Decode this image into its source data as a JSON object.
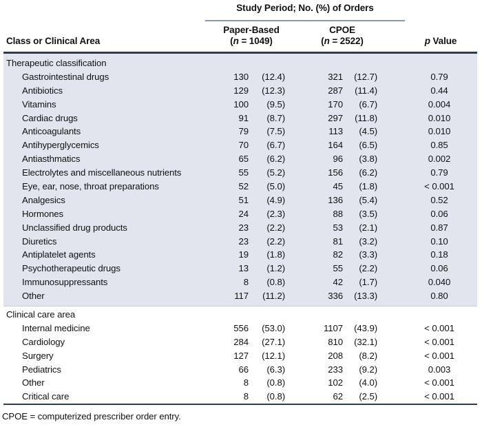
{
  "header": {
    "span_title": "Study Period; No. (%) of Orders",
    "row_header": "Class or Clinical Area",
    "paper": {
      "label": "Paper-Based",
      "n_open": "(",
      "n_italic": "n",
      "n_tail": " = 1049)"
    },
    "cpoe": {
      "label": "CPOE",
      "n_open": "(",
      "n_italic": "n",
      "n_tail": " = 2522)"
    },
    "p_col": {
      "p_italic": "p",
      "rest": " Value"
    }
  },
  "colors": {
    "shaded_band": "#e2e4ee",
    "thick_rule": "#2e3a4e",
    "span_rule": "#9097a4",
    "band_edge": "#c9cdda"
  },
  "table": {
    "sections": [
      {
        "title": "Therapeutic classification",
        "shaded": true,
        "rows": [
          {
            "label": "Gastrointestinal drugs",
            "paper_n": "130",
            "paper_pct": "(12.4)",
            "cpoe_n": "321",
            "cpoe_pct": "(12.7)",
            "p_value": "0.79"
          },
          {
            "label": "Antibiotics",
            "paper_n": "129",
            "paper_pct": "(12.3)",
            "cpoe_n": "287",
            "cpoe_pct": "(11.4)",
            "p_value": "0.44"
          },
          {
            "label": "Vitamins",
            "paper_n": "100",
            "paper_pct": "(9.5)",
            "cpoe_n": "170",
            "cpoe_pct": "(6.7)",
            "p_value": "0.004"
          },
          {
            "label": "Cardiac drugs",
            "paper_n": "91",
            "paper_pct": "(8.7)",
            "cpoe_n": "297",
            "cpoe_pct": "(11.8)",
            "p_value": "0.010"
          },
          {
            "label": "Anticoagulants",
            "paper_n": "79",
            "paper_pct": "(7.5)",
            "cpoe_n": "113",
            "cpoe_pct": "(4.5)",
            "p_value": "0.010"
          },
          {
            "label": "Antihyperglycemics",
            "paper_n": "70",
            "paper_pct": "(6.7)",
            "cpoe_n": "164",
            "cpoe_pct": "(6.5)",
            "p_value": "0.85"
          },
          {
            "label": "Antiasthmatics",
            "paper_n": "65",
            "paper_pct": "(6.2)",
            "cpoe_n": "96",
            "cpoe_pct": "(3.8)",
            "p_value": "0.002"
          },
          {
            "label": "Electrolytes and miscellaneous nutrients",
            "paper_n": "55",
            "paper_pct": "(5.2)",
            "cpoe_n": "156",
            "cpoe_pct": "(6.2)",
            "p_value": "0.79"
          },
          {
            "label": "Eye, ear, nose, throat preparations",
            "paper_n": "52",
            "paper_pct": "(5.0)",
            "cpoe_n": "45",
            "cpoe_pct": "(1.8)",
            "p_value": "< 0.001"
          },
          {
            "label": "Analgesics",
            "paper_n": "51",
            "paper_pct": "(4.9)",
            "cpoe_n": "136",
            "cpoe_pct": "(5.4)",
            "p_value": "0.52"
          },
          {
            "label": "Hormones",
            "paper_n": "24",
            "paper_pct": "(2.3)",
            "cpoe_n": "88",
            "cpoe_pct": "(3.5)",
            "p_value": "0.06"
          },
          {
            "label": "Unclassified drug products",
            "paper_n": "23",
            "paper_pct": "(2.2)",
            "cpoe_n": "53",
            "cpoe_pct": "(2.1)",
            "p_value": "0.87"
          },
          {
            "label": "Diuretics",
            "paper_n": "23",
            "paper_pct": "(2.2)",
            "cpoe_n": "81",
            "cpoe_pct": "(3.2)",
            "p_value": "0.10"
          },
          {
            "label": "Antiplatelet agents",
            "paper_n": "19",
            "paper_pct": "(1.8)",
            "cpoe_n": "82",
            "cpoe_pct": "(3.3)",
            "p_value": "0.18"
          },
          {
            "label": "Psychotherapeutic drugs",
            "paper_n": "13",
            "paper_pct": "(1.2)",
            "cpoe_n": "55",
            "cpoe_pct": "(2.2)",
            "p_value": "0.06"
          },
          {
            "label": "Immunosuppressants",
            "paper_n": "8",
            "paper_pct": "(0.8)",
            "cpoe_n": "42",
            "cpoe_pct": "(1.7)",
            "p_value": "0.040"
          },
          {
            "label": "Other",
            "paper_n": "117",
            "paper_pct": "(11.2)",
            "cpoe_n": "336",
            "cpoe_pct": "(13.3)",
            "p_value": "0.80"
          }
        ]
      },
      {
        "title": "Clinical care area",
        "shaded": false,
        "rows": [
          {
            "label": "Internal medicine",
            "paper_n": "556",
            "paper_pct": "(53.0)",
            "cpoe_n": "1107",
            "cpoe_pct": "(43.9)",
            "p_value": "< 0.001"
          },
          {
            "label": "Cardiology",
            "paper_n": "284",
            "paper_pct": "(27.1)",
            "cpoe_n": "810",
            "cpoe_pct": "(32.1)",
            "p_value": "< 0.001"
          },
          {
            "label": "Surgery",
            "paper_n": "127",
            "paper_pct": "(12.1)",
            "cpoe_n": "208",
            "cpoe_pct": "(8.2)",
            "p_value": "< 0.001"
          },
          {
            "label": "Pediatrics",
            "paper_n": "66",
            "paper_pct": "(6.3)",
            "cpoe_n": "233",
            "cpoe_pct": "(9.2)",
            "p_value": "0.003"
          },
          {
            "label": "Other",
            "paper_n": "8",
            "paper_pct": "(0.8)",
            "cpoe_n": "102",
            "cpoe_pct": "(4.0)",
            "p_value": "< 0.001"
          },
          {
            "label": "Critical care",
            "paper_n": "8",
            "paper_pct": "(0.8)",
            "cpoe_n": "62",
            "cpoe_pct": "(2.5)",
            "p_value": "< 0.001"
          }
        ]
      }
    ]
  },
  "footnote": "CPOE = computerized prescriber order entry."
}
